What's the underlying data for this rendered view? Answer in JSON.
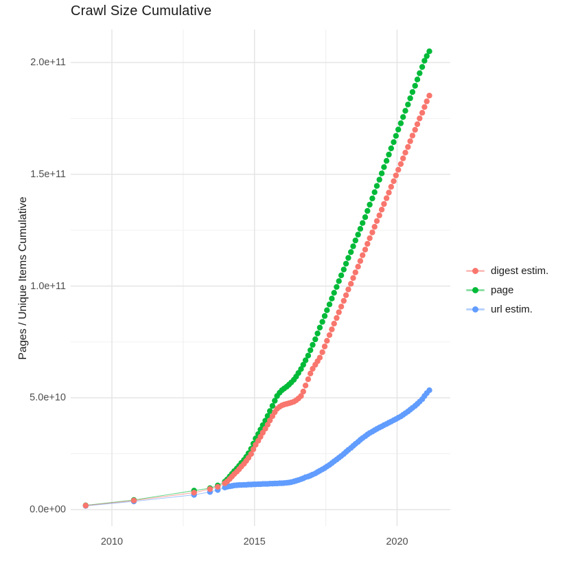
{
  "title": "Crawl Size Cumulative",
  "y_axis": {
    "label": "Pages / Unique Items Cumulative",
    "ticks": [
      {
        "label": "0.0e+00",
        "value_billions": 0
      },
      {
        "label": "5.0e+10",
        "value_billions": 50
      },
      {
        "label": "1.0e+11",
        "value_billions": 100
      },
      {
        "label": "1.5e+11",
        "value_billions": 150
      },
      {
        "label": "2.0e+11",
        "value_billions": 200
      }
    ],
    "minor_gridlines_billions": [
      25,
      75,
      125,
      175
    ]
  },
  "x_axis": {
    "ticks": [
      {
        "label": "2010",
        "value": 2010
      },
      {
        "label": "2015",
        "value": 2015
      },
      {
        "label": "2020",
        "value": 2020
      }
    ],
    "minor_gridlines_years": [
      2012.5,
      2017.5
    ]
  },
  "legend": {
    "items": [
      {
        "label": "digest estim.",
        "series": "digest",
        "color": "#F8766D"
      },
      {
        "label": "page",
        "series": "page",
        "color": "#00BA38"
      },
      {
        "label": "url estim.",
        "series": "url",
        "color": "#619CFF"
      }
    ]
  },
  "colors": {
    "digest": "#F8766D",
    "page": "#00BA38",
    "url": "#619CFF",
    "gridline_major": "#e5e5e5",
    "gridline_minor": "#f0f0f0",
    "tick_text": "#4d4d4d",
    "title_text": "#1a1a1a",
    "background": "#ffffff"
  },
  "chart_data": {
    "type": "scatter",
    "style": "points connected by thin lines (ggplot2 look)",
    "title": "Crawl Size Cumulative",
    "xlabel": "",
    "ylabel": "Pages / Unique Items Cumulative",
    "x_range_years": [
      2008.5,
      2021.8
    ],
    "y_range_billions": [
      0,
      215
    ],
    "grid": "major and minor light gray on white",
    "legend_position": "right-center",
    "unit_note": "values are billions of pages/items (1e9); y axis shown in scientific notation",
    "series": [
      {
        "name": "page",
        "color": "#00BA38",
        "draw_order": 1,
        "points_year_billions": [
          [
            2009.08,
            1.9
          ],
          [
            2010.77,
            4.3
          ],
          [
            2012.88,
            8.5
          ],
          [
            2013.44,
            9.6
          ],
          [
            2013.71,
            10.8
          ],
          [
            2013.96,
            12.5
          ],
          [
            2014.04,
            13.5
          ],
          [
            2014.13,
            14.8
          ],
          [
            2014.21,
            16.0
          ],
          [
            2014.29,
            17.2
          ],
          [
            2014.38,
            18.4
          ],
          [
            2014.46,
            19.6
          ],
          [
            2014.54,
            20.9
          ],
          [
            2014.63,
            22.2
          ],
          [
            2014.71,
            23.6
          ],
          [
            2014.79,
            25.2
          ],
          [
            2014.88,
            27.2
          ],
          [
            2014.96,
            29.5
          ],
          [
            2015.04,
            31.8
          ],
          [
            2015.13,
            33.8
          ],
          [
            2015.21,
            35.8
          ],
          [
            2015.29,
            37.8
          ],
          [
            2015.38,
            39.8
          ],
          [
            2015.46,
            41.9
          ],
          [
            2015.54,
            44.1
          ],
          [
            2015.63,
            46.4
          ],
          [
            2015.71,
            48.7
          ],
          [
            2015.79,
            50.8
          ],
          [
            2015.88,
            52.3
          ],
          [
            2015.96,
            53.4
          ],
          [
            2016.04,
            54.2
          ],
          [
            2016.13,
            55.0
          ],
          [
            2016.21,
            55.9
          ],
          [
            2016.29,
            56.9
          ],
          [
            2016.38,
            58.1
          ],
          [
            2016.46,
            59.5
          ],
          [
            2016.54,
            61.1
          ],
          [
            2016.63,
            62.9
          ],
          [
            2016.71,
            64.8
          ],
          [
            2016.79,
            66.8
          ],
          [
            2016.88,
            68.9
          ],
          [
            2016.96,
            71.3
          ],
          [
            2017.04,
            73.7
          ],
          [
            2017.13,
            76.2
          ],
          [
            2017.21,
            78.8
          ],
          [
            2017.29,
            81.4
          ],
          [
            2017.38,
            84.0
          ],
          [
            2017.46,
            86.6
          ],
          [
            2017.54,
            89.2
          ],
          [
            2017.63,
            91.8
          ],
          [
            2017.71,
            94.4
          ],
          [
            2017.79,
            97.0
          ],
          [
            2017.88,
            99.6
          ],
          [
            2017.96,
            102.2
          ],
          [
            2018.04,
            104.8
          ],
          [
            2018.13,
            107.4
          ],
          [
            2018.21,
            110.0
          ],
          [
            2018.29,
            112.6
          ],
          [
            2018.38,
            115.2
          ],
          [
            2018.46,
            117.8
          ],
          [
            2018.54,
            120.4
          ],
          [
            2018.63,
            123.0
          ],
          [
            2018.71,
            125.6
          ],
          [
            2018.79,
            128.2
          ],
          [
            2018.88,
            130.8
          ],
          [
            2018.96,
            133.6
          ],
          [
            2019.04,
            136.4
          ],
          [
            2019.13,
            139.2
          ],
          [
            2019.21,
            142.0
          ],
          [
            2019.29,
            144.8
          ],
          [
            2019.38,
            147.6
          ],
          [
            2019.46,
            150.4
          ],
          [
            2019.54,
            153.2
          ],
          [
            2019.63,
            156.0
          ],
          [
            2019.71,
            158.8
          ],
          [
            2019.79,
            161.6
          ],
          [
            2019.88,
            164.4
          ],
          [
            2019.96,
            167.2
          ],
          [
            2020.04,
            170.0
          ],
          [
            2020.13,
            172.8
          ],
          [
            2020.21,
            175.6
          ],
          [
            2020.29,
            178.4
          ],
          [
            2020.38,
            181.2
          ],
          [
            2020.46,
            184.0
          ],
          [
            2020.54,
            186.8
          ],
          [
            2020.63,
            189.6
          ],
          [
            2020.71,
            192.4
          ],
          [
            2020.79,
            195.2
          ],
          [
            2020.88,
            198.0
          ],
          [
            2020.96,
            200.8
          ],
          [
            2021.04,
            202.9
          ],
          [
            2021.13,
            205.0
          ]
        ]
      },
      {
        "name": "url estim.",
        "color": "#619CFF",
        "draw_order": 2,
        "points_year_billions": [
          [
            2009.08,
            1.7
          ],
          [
            2010.77,
            3.7
          ],
          [
            2012.88,
            6.6
          ],
          [
            2013.44,
            7.9
          ],
          [
            2013.71,
            8.8
          ],
          [
            2013.96,
            9.9
          ],
          [
            2014.04,
            10.2
          ],
          [
            2014.13,
            10.4
          ],
          [
            2014.21,
            10.6
          ],
          [
            2014.29,
            10.8
          ],
          [
            2014.38,
            10.9
          ],
          [
            2014.46,
            11.0
          ],
          [
            2014.54,
            11.0
          ],
          [
            2014.63,
            11.1
          ],
          [
            2014.71,
            11.1
          ],
          [
            2014.79,
            11.2
          ],
          [
            2014.88,
            11.2
          ],
          [
            2014.96,
            11.3
          ],
          [
            2015.04,
            11.3
          ],
          [
            2015.13,
            11.4
          ],
          [
            2015.21,
            11.4
          ],
          [
            2015.29,
            11.5
          ],
          [
            2015.38,
            11.5
          ],
          [
            2015.46,
            11.5
          ],
          [
            2015.54,
            11.6
          ],
          [
            2015.63,
            11.6
          ],
          [
            2015.71,
            11.7
          ],
          [
            2015.79,
            11.7
          ],
          [
            2015.88,
            11.8
          ],
          [
            2015.96,
            11.8
          ],
          [
            2016.04,
            11.9
          ],
          [
            2016.13,
            12.0
          ],
          [
            2016.21,
            12.1
          ],
          [
            2016.29,
            12.3
          ],
          [
            2016.38,
            12.6
          ],
          [
            2016.46,
            12.9
          ],
          [
            2016.54,
            13.2
          ],
          [
            2016.63,
            13.6
          ],
          [
            2016.71,
            14.0
          ],
          [
            2016.79,
            14.5
          ],
          [
            2016.88,
            14.8
          ],
          [
            2016.96,
            15.2
          ],
          [
            2017.04,
            15.7
          ],
          [
            2017.13,
            16.2
          ],
          [
            2017.21,
            16.8
          ],
          [
            2017.29,
            17.4
          ],
          [
            2017.38,
            18.0
          ],
          [
            2017.46,
            18.6
          ],
          [
            2017.54,
            19.3
          ],
          [
            2017.63,
            20.0
          ],
          [
            2017.71,
            20.8
          ],
          [
            2017.79,
            21.6
          ],
          [
            2017.88,
            22.4
          ],
          [
            2017.96,
            23.2
          ],
          [
            2018.04,
            24.0
          ],
          [
            2018.13,
            24.9
          ],
          [
            2018.21,
            25.8
          ],
          [
            2018.29,
            26.7
          ],
          [
            2018.38,
            27.6
          ],
          [
            2018.46,
            28.5
          ],
          [
            2018.54,
            29.4
          ],
          [
            2018.63,
            30.3
          ],
          [
            2018.71,
            31.2
          ],
          [
            2018.79,
            32.0
          ],
          [
            2018.88,
            32.8
          ],
          [
            2018.96,
            33.6
          ],
          [
            2019.04,
            34.3
          ],
          [
            2019.13,
            34.9
          ],
          [
            2019.21,
            35.5
          ],
          [
            2019.29,
            36.1
          ],
          [
            2019.38,
            36.7
          ],
          [
            2019.46,
            37.2
          ],
          [
            2019.54,
            37.8
          ],
          [
            2019.63,
            38.3
          ],
          [
            2019.71,
            38.9
          ],
          [
            2019.79,
            39.4
          ],
          [
            2019.88,
            40.0
          ],
          [
            2019.96,
            40.5
          ],
          [
            2020.04,
            41.1
          ],
          [
            2020.13,
            41.7
          ],
          [
            2020.21,
            42.4
          ],
          [
            2020.29,
            43.1
          ],
          [
            2020.38,
            43.9
          ],
          [
            2020.46,
            44.7
          ],
          [
            2020.54,
            45.5
          ],
          [
            2020.63,
            46.4
          ],
          [
            2020.71,
            47.3
          ],
          [
            2020.79,
            48.3
          ],
          [
            2020.88,
            49.4
          ],
          [
            2020.96,
            50.8
          ],
          [
            2021.04,
            52.1
          ],
          [
            2021.13,
            53.4
          ]
        ]
      },
      {
        "name": "digest estim.",
        "color": "#F8766D",
        "draw_order": 3,
        "points_year_billions": [
          [
            2009.08,
            1.8
          ],
          [
            2010.77,
            4.1
          ],
          [
            2012.88,
            7.6
          ],
          [
            2013.44,
            9.2
          ],
          [
            2013.71,
            10.2
          ],
          [
            2013.96,
            11.8
          ],
          [
            2014.04,
            12.6
          ],
          [
            2014.13,
            13.7
          ],
          [
            2014.21,
            14.8
          ],
          [
            2014.29,
            15.9
          ],
          [
            2014.38,
            17.0
          ],
          [
            2014.46,
            18.1
          ],
          [
            2014.54,
            19.3
          ],
          [
            2014.63,
            20.5
          ],
          [
            2014.71,
            21.8
          ],
          [
            2014.79,
            23.2
          ],
          [
            2014.88,
            24.9
          ],
          [
            2014.96,
            27.0
          ],
          [
            2015.04,
            29.0
          ],
          [
            2015.13,
            30.8
          ],
          [
            2015.21,
            32.6
          ],
          [
            2015.29,
            34.4
          ],
          [
            2015.38,
            36.2
          ],
          [
            2015.46,
            38.0
          ],
          [
            2015.54,
            39.9
          ],
          [
            2015.63,
            41.8
          ],
          [
            2015.71,
            43.6
          ],
          [
            2015.79,
            45.1
          ],
          [
            2015.88,
            46.0
          ],
          [
            2015.96,
            46.6
          ],
          [
            2016.04,
            47.0
          ],
          [
            2016.13,
            47.3
          ],
          [
            2016.21,
            47.6
          ],
          [
            2016.29,
            47.9
          ],
          [
            2016.38,
            48.3
          ],
          [
            2016.46,
            48.9
          ],
          [
            2016.54,
            49.7
          ],
          [
            2016.63,
            50.8
          ],
          [
            2016.71,
            52.8
          ],
          [
            2016.79,
            55.5
          ],
          [
            2016.88,
            58.3
          ],
          [
            2016.96,
            60.9
          ],
          [
            2017.04,
            63.0
          ],
          [
            2017.13,
            64.8
          ],
          [
            2017.21,
            66.4
          ],
          [
            2017.29,
            68.0
          ],
          [
            2017.38,
            70.4
          ],
          [
            2017.46,
            73.0
          ],
          [
            2017.54,
            75.5
          ],
          [
            2017.63,
            78.1
          ],
          [
            2017.71,
            80.6
          ],
          [
            2017.79,
            83.2
          ],
          [
            2017.88,
            85.7
          ],
          [
            2017.96,
            88.3
          ],
          [
            2018.04,
            90.8
          ],
          [
            2018.13,
            93.4
          ],
          [
            2018.21,
            95.9
          ],
          [
            2018.29,
            98.5
          ],
          [
            2018.38,
            101.0
          ],
          [
            2018.46,
            103.6
          ],
          [
            2018.54,
            106.1
          ],
          [
            2018.63,
            108.7
          ],
          [
            2018.71,
            111.2
          ],
          [
            2018.79,
            113.8
          ],
          [
            2018.88,
            116.3
          ],
          [
            2018.96,
            118.9
          ],
          [
            2019.04,
            121.4
          ],
          [
            2019.13,
            124.0
          ],
          [
            2019.21,
            126.5
          ],
          [
            2019.29,
            129.1
          ],
          [
            2019.38,
            131.6
          ],
          [
            2019.46,
            134.2
          ],
          [
            2019.54,
            136.7
          ],
          [
            2019.63,
            139.3
          ],
          [
            2019.71,
            141.8
          ],
          [
            2019.79,
            144.4
          ],
          [
            2019.88,
            146.9
          ],
          [
            2019.96,
            149.5
          ],
          [
            2020.04,
            152.0
          ],
          [
            2020.13,
            154.6
          ],
          [
            2020.21,
            157.1
          ],
          [
            2020.29,
            159.7
          ],
          [
            2020.38,
            162.2
          ],
          [
            2020.46,
            164.8
          ],
          [
            2020.54,
            167.3
          ],
          [
            2020.63,
            169.9
          ],
          [
            2020.71,
            172.4
          ],
          [
            2020.79,
            175.0
          ],
          [
            2020.88,
            177.5
          ],
          [
            2020.96,
            180.1
          ],
          [
            2021.04,
            182.6
          ],
          [
            2021.13,
            185.2
          ]
        ]
      }
    ]
  }
}
